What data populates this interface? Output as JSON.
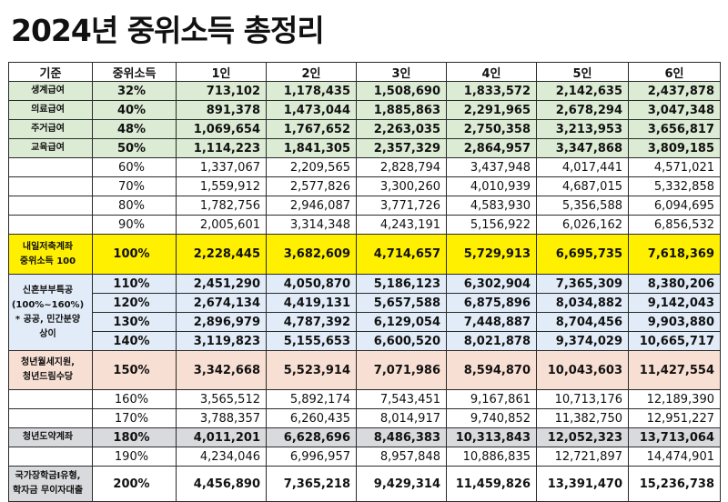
{
  "title": "2024년 중위소득 총정리",
  "header": [
    "기준",
    "중위소득",
    "1인",
    "2인",
    "3인",
    "4인",
    "5인",
    "6인"
  ],
  "rows": [
    {
      "cat": "생계급여",
      "pct": "32%",
      "v": [
        "713,102",
        "1,178,435",
        "1,508,690",
        "1,833,572",
        "2,142,635",
        "2,437,878"
      ]
    },
    {
      "cat": "의료급여",
      "pct": "40%",
      "v": [
        "891,378",
        "1,473,044",
        "1,885,863",
        "2,291,965",
        "2,678,294",
        "3,047,348"
      ]
    },
    {
      "cat": "주거급여",
      "pct": "48%",
      "v": [
        "1,069,654",
        "1,767,652",
        "2,263,035",
        "2,750,358",
        "3,213,953",
        "3,656,817"
      ]
    },
    {
      "cat": "교육급여",
      "pct": "50%",
      "v": [
        "1,114,223",
        "1,841,305",
        "2,357,329",
        "2,864,957",
        "3,347,868",
        "3,809,185"
      ]
    },
    {
      "cat": "",
      "pct": "60%",
      "v": [
        "1,337,067",
        "2,209,565",
        "2,828,794",
        "3,437,948",
        "4,017,441",
        "4,571,021"
      ]
    },
    {
      "cat": "",
      "pct": "70%",
      "v": [
        "1,559,912",
        "2,577,826",
        "3,300,260",
        "4,010,939",
        "4,687,015",
        "5,332,858"
      ]
    },
    {
      "cat": "",
      "pct": "80%",
      "v": [
        "1,782,756",
        "2,946,087",
        "3,771,726",
        "4,583,930",
        "5,356,588",
        "6,094,695"
      ]
    },
    {
      "cat": "",
      "pct": "90%",
      "v": [
        "2,005,601",
        "3,314,348",
        "4,243,191",
        "5,156,922",
        "6,026,162",
        "6,856,532"
      ]
    },
    {
      "cat": "내일저축계좌\n중위소득 100",
      "pct": "100%",
      "v": [
        "2,228,445",
        "3,682,609",
        "4,714,657",
        "5,729,913",
        "6,695,735",
        "7,618,369"
      ]
    },
    {
      "cat": "신혼부부특공\n(100%~160%)\n* 공공, 민간분양\n상이",
      "pct": "110%",
      "v": [
        "2,451,290",
        "4,050,870",
        "5,186,123",
        "6,302,904",
        "7,365,309",
        "8,380,206"
      ]
    },
    {
      "cat": "",
      "pct": "120%",
      "v": [
        "2,674,134",
        "4,419,131",
        "5,657,588",
        "6,875,896",
        "8,034,882",
        "9,142,043"
      ]
    },
    {
      "cat": "",
      "pct": "130%",
      "v": [
        "2,896,979",
        "4,787,392",
        "6,129,054",
        "7,448,887",
        "8,704,456",
        "9,903,880"
      ]
    },
    {
      "cat": "",
      "pct": "140%",
      "v": [
        "3,119,823",
        "5,155,653",
        "6,600,520",
        "8,021,878",
        "9,374,029",
        "10,665,717"
      ]
    },
    {
      "cat": "청년월세지원,\n청년드림수당",
      "pct": "150%",
      "v": [
        "3,342,668",
        "5,523,914",
        "7,071,986",
        "8,594,870",
        "10,043,603",
        "11,427,554"
      ]
    },
    {
      "cat": "",
      "pct": "160%",
      "v": [
        "3,565,512",
        "5,892,174",
        "7,543,451",
        "9,167,861",
        "10,713,176",
        "12,189,390"
      ]
    },
    {
      "cat": "",
      "pct": "170%",
      "v": [
        "3,788,357",
        "6,260,435",
        "8,014,917",
        "9,740,852",
        "11,382,750",
        "12,951,227"
      ]
    },
    {
      "cat": "청년도약계좌",
      "pct": "180%",
      "v": [
        "4,011,201",
        "6,628,696",
        "8,486,383",
        "10,313,843",
        "12,052,323",
        "13,713,064"
      ]
    },
    {
      "cat": "",
      "pct": "190%",
      "v": [
        "4,234,046",
        "6,996,957",
        "8,957,848",
        "10,886,835",
        "12,721,897",
        "14,474,901"
      ]
    },
    {
      "cat": "국가장학금I유형,\n학자금 무이자대출",
      "pct": "200%",
      "v": [
        "4,456,890",
        "7,365,218",
        "9,429,314",
        "11,459,826",
        "13,391,470",
        "15,236,738"
      ]
    }
  ],
  "colors": {
    "green": "#dcebd4",
    "yellow": "#fff000",
    "blue": "#e2ecf8",
    "pink": "#f8dfd3",
    "gray": "#d9dadd"
  }
}
